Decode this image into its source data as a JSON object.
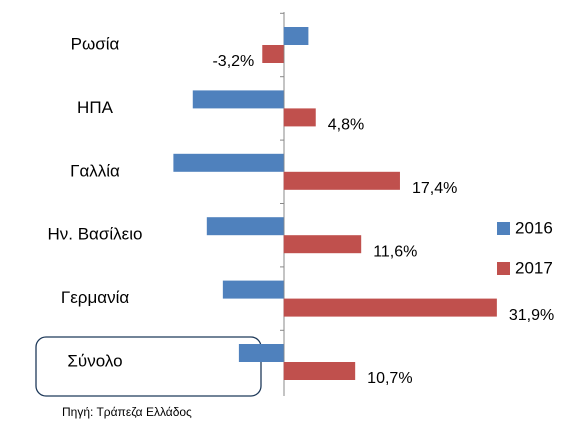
{
  "chart_data": {
    "type": "bar",
    "orientation": "horizontal",
    "categories": [
      "Ρωσία",
      "ΗΠΑ",
      "Γαλλία",
      "Ην. Βασίλειο",
      "Γερμανία",
      "Σύνολο"
    ],
    "series": [
      {
        "name": "2016",
        "color": "#4f81bd",
        "values": [
          3.7,
          -13.6,
          -16.5,
          -11.5,
          -9.1,
          -6.7
        ]
      },
      {
        "name": "2017",
        "color": "#c0504d",
        "values": [
          -3.2,
          4.8,
          17.4,
          11.6,
          31.9,
          10.7
        ],
        "value_labels": [
          "-3,2%",
          "4,8%",
          "17,4%",
          "11,6%",
          "31,9%",
          "10,7%"
        ]
      }
    ],
    "xlim": [
      -20,
      40
    ],
    "legend": "right",
    "source": "Πηγή: Τράπεζα Ελλάδος"
  }
}
